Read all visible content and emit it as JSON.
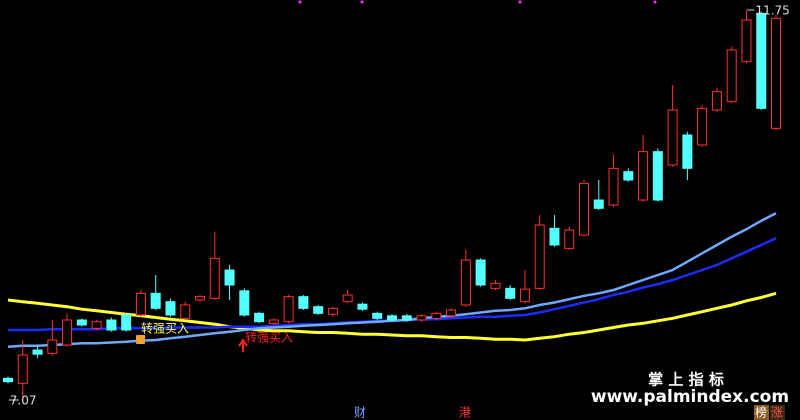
{
  "chart_data": {
    "type": "candlestick",
    "ylim": [
      6.95,
      11.87
    ],
    "up_color": "#ff3232",
    "down_color": "#54ffff",
    "open": [
      7.33,
      7.27,
      7.67,
      7.63,
      7.73,
      8.03,
      7.93,
      8.03,
      8.09,
      8.09,
      8.35,
      8.25,
      8.05,
      8.27,
      8.29,
      8.63,
      8.38,
      8.11,
      7.99,
      8.01,
      8.31,
      8.19,
      8.1,
      8.25,
      8.22,
      8.11,
      8.08,
      8.08,
      8.03,
      8.05,
      8.08,
      8.21,
      8.75,
      8.41,
      8.41,
      8.25,
      8.41,
      9.13,
      8.89,
      9.05,
      9.47,
      9.41,
      9.81,
      9.47,
      10.05,
      9.89,
      10.25,
      10.13,
      10.55,
      10.65,
      11.13,
      11.71,
      10.33
    ],
    "high": [
      7.35,
      7.79,
      7.73,
      8.03,
      8.11,
      8.05,
      8.03,
      8.06,
      8.11,
      8.39,
      8.57,
      8.29,
      8.25,
      8.33,
      9.09,
      8.69,
      8.41,
      8.13,
      8.05,
      8.33,
      8.33,
      8.21,
      8.19,
      8.39,
      8.24,
      8.13,
      8.1,
      8.1,
      8.1,
      8.13,
      8.17,
      8.87,
      8.77,
      8.51,
      8.45,
      8.63,
      9.29,
      9.29,
      9.15,
      9.71,
      9.71,
      10.01,
      9.85,
      10.25,
      10.09,
      10.85,
      10.29,
      10.61,
      10.81,
      11.31,
      11.75,
      11.73,
      11.69
    ],
    "low": [
      7.27,
      7.07,
      7.57,
      7.6,
      7.71,
      7.95,
      7.91,
      7.89,
      7.89,
      8.07,
      8.15,
      8.07,
      8.03,
      8.25,
      8.27,
      8.27,
      8.07,
      7.99,
      7.97,
      7.99,
      8.15,
      8.09,
      8.07,
      8.23,
      8.14,
      8.03,
      8.01,
      8.01,
      8.01,
      8.03,
      8.06,
      8.19,
      8.43,
      8.39,
      8.27,
      8.23,
      8.39,
      8.91,
      8.87,
      9.03,
      9.35,
      9.39,
      9.69,
      9.45,
      9.45,
      9.87,
      9.71,
      10.11,
      10.53,
      10.63,
      11.11,
      10.55,
      10.31
    ],
    "close": [
      7.29,
      7.61,
      7.62,
      7.79,
      8.03,
      7.97,
      8.01,
      7.91,
      7.91,
      8.35,
      8.17,
      8.09,
      8.21,
      8.31,
      8.77,
      8.45,
      8.09,
      8.01,
      8.03,
      8.31,
      8.17,
      8.11,
      8.17,
      8.33,
      8.16,
      8.05,
      8.03,
      8.03,
      8.08,
      8.11,
      8.15,
      8.75,
      8.45,
      8.47,
      8.29,
      8.4,
      9.17,
      8.93,
      9.11,
      9.67,
      9.37,
      9.85,
      9.71,
      10.05,
      9.47,
      10.55,
      9.85,
      10.57,
      10.77,
      11.27,
      11.63,
      10.57,
      11.65
    ],
    "series": [
      {
        "color": "#ffff33",
        "values": [
          8.27,
          8.25,
          8.23,
          8.21,
          8.19,
          8.16,
          8.14,
          8.12,
          8.1,
          8.08,
          8.06,
          8.04,
          8.02,
          8.0,
          7.98,
          7.95,
          7.93,
          7.91,
          7.9,
          7.9,
          7.89,
          7.88,
          7.88,
          7.87,
          7.86,
          7.86,
          7.85,
          7.84,
          7.84,
          7.83,
          7.82,
          7.82,
          7.81,
          7.8,
          7.8,
          7.79,
          7.81,
          7.83,
          7.86,
          7.88,
          7.91,
          7.94,
          7.97,
          7.99,
          8.02,
          8.05,
          8.09,
          8.13,
          8.17,
          8.21,
          8.26,
          8.3,
          8.35
        ]
      },
      {
        "color": "#1a2cff",
        "values": [
          7.91,
          7.91,
          7.91,
          7.92,
          7.92,
          7.92,
          7.92,
          7.93,
          7.93,
          7.93,
          7.93,
          7.94,
          7.94,
          7.94,
          7.94,
          7.95,
          7.95,
          7.95,
          7.96,
          7.97,
          7.98,
          7.98,
          7.99,
          8.0,
          8.01,
          8.02,
          8.02,
          8.03,
          8.04,
          8.04,
          8.05,
          8.06,
          8.07,
          8.07,
          8.08,
          8.09,
          8.12,
          8.16,
          8.2,
          8.24,
          8.28,
          8.33,
          8.37,
          8.42,
          8.46,
          8.51,
          8.57,
          8.63,
          8.69,
          8.77,
          8.85,
          8.93,
          9.01
        ]
      },
      {
        "color": "#6fa8ff",
        "values": [
          7.71,
          7.72,
          7.72,
          7.73,
          7.74,
          7.75,
          7.75,
          7.76,
          7.77,
          7.78,
          7.79,
          7.81,
          7.83,
          7.85,
          7.87,
          7.89,
          7.91,
          7.93,
          7.94,
          7.95,
          7.96,
          7.97,
          7.98,
          7.99,
          8.0,
          8.01,
          8.02,
          8.03,
          8.05,
          8.07,
          8.08,
          8.1,
          8.12,
          8.14,
          8.15,
          8.17,
          8.21,
          8.24,
          8.28,
          8.32,
          8.35,
          8.39,
          8.45,
          8.51,
          8.57,
          8.63,
          8.73,
          8.83,
          8.93,
          9.03,
          9.12,
          9.22,
          9.31
        ]
      }
    ],
    "max_label": 11.75,
    "min_label": 7.07,
    "annotations": [
      "转强买入",
      "转强买入"
    ],
    "markers": [
      "财",
      "港",
      "榜",
      "涨"
    ],
    "watermark": {
      "title": "掌 上 指 标",
      "url": "www.palmindex.com"
    }
  }
}
